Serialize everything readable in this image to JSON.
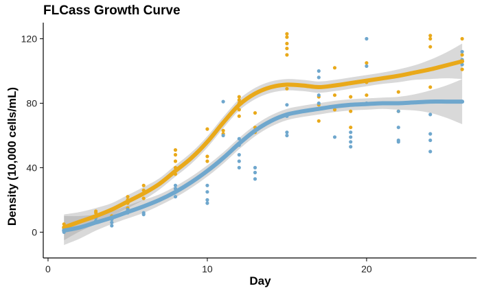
{
  "chart_data": {
    "type": "scatter",
    "title": "FLCass Growth Curve",
    "xlabel": "Day",
    "ylabel": "Density (10,000 cells/mL)",
    "xlim": [
      -0.3,
      26.9
    ],
    "ylim": [
      -16,
      130
    ],
    "xticks": [
      0,
      10,
      20
    ],
    "yticks": [
      0,
      40,
      80,
      120
    ],
    "grid": false,
    "legend": "none",
    "smoothing": "loess with confidence band",
    "series": [
      {
        "color": "#e9a91a",
        "points": [
          [
            1,
            5
          ],
          [
            1,
            3
          ],
          [
            1,
            2
          ],
          [
            3,
            13
          ],
          [
            3,
            12
          ],
          [
            4,
            10
          ],
          [
            4,
            8
          ],
          [
            5,
            22
          ],
          [
            5,
            20
          ],
          [
            5,
            18
          ],
          [
            5,
            15
          ],
          [
            6,
            29
          ],
          [
            6,
            26
          ],
          [
            6,
            24
          ],
          [
            6,
            21
          ],
          [
            8,
            51
          ],
          [
            8,
            48
          ],
          [
            8,
            44
          ],
          [
            8,
            40
          ],
          [
            8,
            36
          ],
          [
            10,
            64
          ],
          [
            10,
            47
          ],
          [
            10,
            44
          ],
          [
            11,
            63
          ],
          [
            11,
            61
          ],
          [
            12,
            84
          ],
          [
            12,
            82
          ],
          [
            12,
            80
          ],
          [
            12,
            76
          ],
          [
            12,
            72
          ],
          [
            13,
            74
          ],
          [
            13,
            65
          ],
          [
            13,
            62
          ],
          [
            15,
            123
          ],
          [
            15,
            121
          ],
          [
            15,
            117
          ],
          [
            15,
            114
          ],
          [
            15,
            110
          ],
          [
            15,
            89
          ],
          [
            17,
            84
          ],
          [
            17,
            79
          ],
          [
            17,
            69
          ],
          [
            18,
            102
          ],
          [
            18,
            85
          ],
          [
            18,
            76
          ],
          [
            19,
            84
          ],
          [
            19,
            75
          ],
          [
            19,
            65
          ],
          [
            20,
            105
          ],
          [
            20,
            93
          ],
          [
            20,
            85
          ],
          [
            22,
            87
          ],
          [
            22,
            80
          ],
          [
            22,
            75
          ],
          [
            24,
            122
          ],
          [
            24,
            120
          ],
          [
            24,
            115
          ],
          [
            24,
            90
          ],
          [
            26,
            120
          ],
          [
            26,
            110
          ],
          [
            26,
            106
          ],
          [
            26,
            101
          ]
        ],
        "fit": [
          [
            1,
            3
          ],
          [
            2,
            6.5
          ],
          [
            3,
            10
          ],
          [
            4,
            14
          ],
          [
            5,
            19
          ],
          [
            6,
            24
          ],
          [
            7,
            30
          ],
          [
            8,
            38
          ],
          [
            9,
            46
          ],
          [
            10,
            56
          ],
          [
            11,
            68
          ],
          [
            12,
            79
          ],
          [
            13,
            86
          ],
          [
            14,
            90
          ],
          [
            15,
            91.5
          ],
          [
            16,
            91
          ],
          [
            17,
            90
          ],
          [
            18,
            91
          ],
          [
            19,
            92.5
          ],
          [
            20,
            94
          ],
          [
            21,
            95.5
          ],
          [
            22,
            97
          ],
          [
            23,
            99
          ],
          [
            24,
            101
          ],
          [
            25,
            103.5
          ],
          [
            26,
            106
          ]
        ],
        "band_halfwidth": [
          8,
          6,
          5,
          4,
          4,
          4,
          3.5,
          3.5,
          3.5,
          3.5,
          3.5,
          3.5,
          3.5,
          3.5,
          3.5,
          3.5,
          3.5,
          3.5,
          3.5,
          3.5,
          3.5,
          4,
          4.5,
          6,
          8,
          11
        ]
      },
      {
        "color": "#6fa7cd",
        "points": [
          [
            1,
            2
          ],
          [
            1,
            1
          ],
          [
            1,
            0
          ],
          [
            3,
            9
          ],
          [
            3,
            7
          ],
          [
            4,
            8
          ],
          [
            4,
            6
          ],
          [
            4,
            4
          ],
          [
            5,
            14
          ],
          [
            5,
            12
          ],
          [
            6,
            16
          ],
          [
            6,
            12
          ],
          [
            6,
            11
          ],
          [
            8,
            29
          ],
          [
            8,
            27
          ],
          [
            8,
            25
          ],
          [
            8,
            22
          ],
          [
            10,
            29
          ],
          [
            10,
            25
          ],
          [
            10,
            20
          ],
          [
            10,
            18
          ],
          [
            11,
            81
          ],
          [
            11,
            60
          ],
          [
            12,
            58
          ],
          [
            12,
            54
          ],
          [
            12,
            48
          ],
          [
            12,
            44
          ],
          [
            12,
            40
          ],
          [
            13,
            40
          ],
          [
            13,
            37
          ],
          [
            13,
            33
          ],
          [
            15,
            79
          ],
          [
            15,
            72
          ],
          [
            15,
            62
          ],
          [
            15,
            60
          ],
          [
            17,
            100
          ],
          [
            17,
            96
          ],
          [
            17,
            85
          ],
          [
            17,
            80
          ],
          [
            18,
            59
          ],
          [
            19,
            62
          ],
          [
            19,
            59
          ],
          [
            19,
            56
          ],
          [
            19,
            53
          ],
          [
            20,
            120
          ],
          [
            20,
            103
          ],
          [
            20,
            80
          ],
          [
            22,
            75
          ],
          [
            22,
            65
          ],
          [
            22,
            57
          ],
          [
            22,
            56
          ],
          [
            24,
            73
          ],
          [
            24,
            61
          ],
          [
            24,
            57
          ],
          [
            24,
            50
          ],
          [
            26,
            112
          ],
          [
            26,
            107
          ],
          [
            26,
            104
          ],
          [
            26,
            81
          ]
        ],
        "fit": [
          [
            1,
            1
          ],
          [
            2,
            3
          ],
          [
            3,
            6
          ],
          [
            4,
            9
          ],
          [
            5,
            12.5
          ],
          [
            6,
            16
          ],
          [
            7,
            20
          ],
          [
            8,
            25
          ],
          [
            9,
            31
          ],
          [
            10,
            38
          ],
          [
            11,
            46
          ],
          [
            12,
            55
          ],
          [
            13,
            63
          ],
          [
            14,
            69
          ],
          [
            15,
            73
          ],
          [
            16,
            75
          ],
          [
            17,
            76.5
          ],
          [
            18,
            78
          ],
          [
            19,
            79
          ],
          [
            20,
            79.5
          ],
          [
            21,
            80
          ],
          [
            22,
            80
          ],
          [
            23,
            80.5
          ],
          [
            24,
            81
          ],
          [
            25,
            81
          ],
          [
            26,
            81
          ]
        ],
        "band_halfwidth": [
          9,
          7,
          5,
          4,
          4,
          4,
          3.5,
          3.5,
          3.5,
          3.5,
          3.5,
          3.5,
          3.5,
          3.5,
          3.5,
          3.5,
          3.5,
          3.5,
          3.5,
          3.5,
          3.5,
          4,
          5,
          7,
          10,
          14
        ]
      }
    ]
  }
}
